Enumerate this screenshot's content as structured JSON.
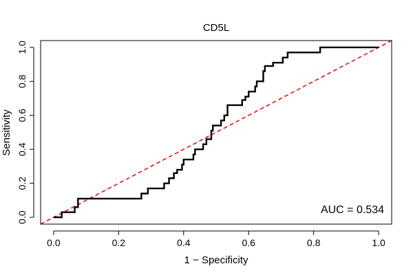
{
  "chart_data": {
    "type": "line",
    "title": "CD5L",
    "xlabel": "1 − Specificity",
    "ylabel": "Sensitivity",
    "xlim": [
      -0.04,
      1.04
    ],
    "ylim": [
      -0.04,
      1.04
    ],
    "x_ticks": [
      0.0,
      0.2,
      0.4,
      0.6,
      0.8,
      1.0
    ],
    "y_ticks": [
      0.0,
      0.2,
      0.4,
      0.6,
      0.8,
      1.0
    ],
    "x_tick_labels": [
      "0.0",
      "0.2",
      "0.4",
      "0.6",
      "0.8",
      "1.0"
    ],
    "y_tick_labels": [
      "0.0",
      "0.2",
      "0.4",
      "0.6",
      "0.8",
      "1.0"
    ],
    "annotation": "AUC = 0.534",
    "annotation_position": "bottom-right",
    "grid": false,
    "series": [
      {
        "kind": "roc-step",
        "color": "#000000",
        "points": [
          [
            0.0,
            0.0
          ],
          [
            0.025,
            0.0
          ],
          [
            0.025,
            0.03
          ],
          [
            0.065,
            0.03
          ],
          [
            0.065,
            0.06
          ],
          [
            0.075,
            0.06
          ],
          [
            0.075,
            0.11
          ],
          [
            0.27,
            0.11
          ],
          [
            0.27,
            0.14
          ],
          [
            0.29,
            0.14
          ],
          [
            0.29,
            0.17
          ],
          [
            0.34,
            0.17
          ],
          [
            0.34,
            0.2
          ],
          [
            0.355,
            0.2
          ],
          [
            0.355,
            0.23
          ],
          [
            0.37,
            0.23
          ],
          [
            0.37,
            0.26
          ],
          [
            0.38,
            0.26
          ],
          [
            0.38,
            0.28
          ],
          [
            0.395,
            0.28
          ],
          [
            0.395,
            0.31
          ],
          [
            0.4,
            0.31
          ],
          [
            0.4,
            0.34
          ],
          [
            0.43,
            0.34
          ],
          [
            0.43,
            0.37
          ],
          [
            0.435,
            0.37
          ],
          [
            0.435,
            0.4
          ],
          [
            0.46,
            0.4
          ],
          [
            0.46,
            0.43
          ],
          [
            0.47,
            0.43
          ],
          [
            0.47,
            0.46
          ],
          [
            0.485,
            0.46
          ],
          [
            0.485,
            0.51
          ],
          [
            0.49,
            0.51
          ],
          [
            0.49,
            0.54
          ],
          [
            0.515,
            0.54
          ],
          [
            0.515,
            0.57
          ],
          [
            0.525,
            0.57
          ],
          [
            0.525,
            0.6
          ],
          [
            0.535,
            0.6
          ],
          [
            0.535,
            0.66
          ],
          [
            0.58,
            0.66
          ],
          [
            0.58,
            0.69
          ],
          [
            0.59,
            0.69
          ],
          [
            0.59,
            0.71
          ],
          [
            0.6,
            0.71
          ],
          [
            0.6,
            0.74
          ],
          [
            0.62,
            0.74
          ],
          [
            0.62,
            0.77
          ],
          [
            0.625,
            0.77
          ],
          [
            0.625,
            0.8
          ],
          [
            0.645,
            0.8
          ],
          [
            0.645,
            0.86
          ],
          [
            0.65,
            0.86
          ],
          [
            0.65,
            0.89
          ],
          [
            0.675,
            0.89
          ],
          [
            0.675,
            0.91
          ],
          [
            0.705,
            0.91
          ],
          [
            0.705,
            0.94
          ],
          [
            0.72,
            0.94
          ],
          [
            0.72,
            0.97
          ],
          [
            0.82,
            0.97
          ],
          [
            0.82,
            1.0
          ],
          [
            1.0,
            1.0
          ]
        ]
      },
      {
        "kind": "reference-diagonal",
        "color": "#ee1111",
        "dashed": true,
        "points": [
          [
            -0.04,
            -0.04
          ],
          [
            1.04,
            1.04
          ]
        ]
      }
    ]
  }
}
